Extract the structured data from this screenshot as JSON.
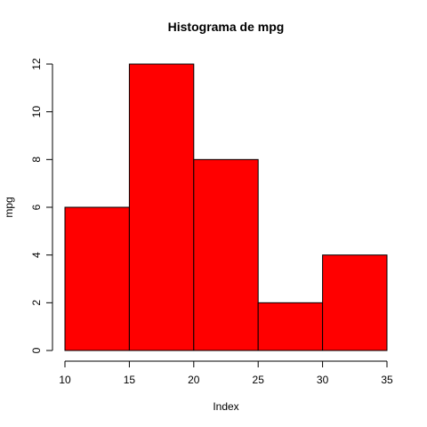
{
  "chart_data": {
    "type": "bar",
    "title": "Histograma de  mpg",
    "xlabel": "Index",
    "ylabel": "mpg",
    "bins": [
      {
        "from": 10,
        "to": 15,
        "count": 6
      },
      {
        "from": 15,
        "to": 20,
        "count": 12
      },
      {
        "from": 20,
        "to": 25,
        "count": 8
      },
      {
        "from": 25,
        "to": 30,
        "count": 2
      },
      {
        "from": 30,
        "to": 35,
        "count": 4
      }
    ],
    "x_ticks": [
      "10",
      "15",
      "20",
      "25",
      "30",
      "35"
    ],
    "y_ticks": [
      "0",
      "2",
      "4",
      "6",
      "8",
      "10",
      "12"
    ],
    "xlim": [
      10,
      35
    ],
    "ylim": [
      0,
      12
    ],
    "bar_color": "#ff0000",
    "bar_edge_color": "#000000",
    "grid": false
  }
}
